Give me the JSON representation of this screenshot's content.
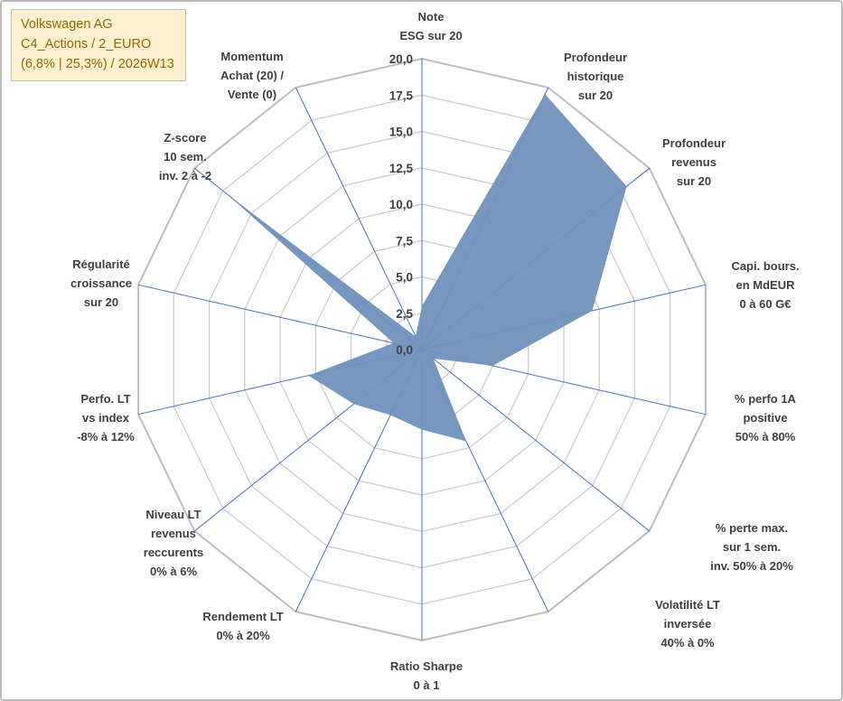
{
  "title_box": {
    "line1": "Volkswagen AG",
    "line2": "C4_Actions / 2_EURO",
    "line3": "(6,8% | 25,3%) / 2026W13"
  },
  "chart_data": {
    "type": "radar",
    "title": "",
    "rmin": 0,
    "rmax": 20,
    "grid_step": 2.5,
    "ticks": [
      "0,0",
      "2,5",
      "5,0",
      "7,5",
      "10,0",
      "12,5",
      "15,0",
      "17,5",
      "20,0"
    ],
    "legend": "none",
    "axes": [
      {
        "label": "Note\nESG sur 20",
        "value": 3
      },
      {
        "label": "Profondeur\nhistorique\nsur 20",
        "value": 19.5
      },
      {
        "label": "Profondeur\nrevenus\nsur 20",
        "value": 18
      },
      {
        "label": "Capi. bours.\nen MdEUR\n0 à 60 G€",
        "value": 12
      },
      {
        "label": "% perfo 1A\npositive\n50% à 80%",
        "value": 5
      },
      {
        "label": "% perte max.\nsur 1 sem.\ninv. 50% à 20%",
        "value": 1
      },
      {
        "label": "Volatilité LT\ninversée\n40% à 0%",
        "value": 7
      },
      {
        "label": "Ratio Sharpe\n0 à 1",
        "value": 5.5
      },
      {
        "label": "Rendement LT\n0% à 20%",
        "value": 5
      },
      {
        "label": "Niveau LT\nrevenus\nreccurents\n0% à 6%",
        "value": 6
      },
      {
        "label": "Perfo. LT\nvs index\n-8% à 12%",
        "value": 8
      },
      {
        "label": "Régularité\ncroissance\nsur 20",
        "value": 2
      },
      {
        "label": "Z-score\n10 sem.\ninv. 2 à -2",
        "value": 17
      },
      {
        "label": "Momentum\nAchat (20) /\nVente (0)",
        "value": 1
      }
    ],
    "colors": {
      "fill": "#7191bc",
      "fill_opacity": 0.95,
      "spoke": "#4472c4",
      "grid": "#c9c9c9",
      "outer_grid": "#bdbdbd",
      "text": "#3f3f3f",
      "title_bg": "#fdf0ce",
      "title_text": "#9c6500"
    }
  }
}
